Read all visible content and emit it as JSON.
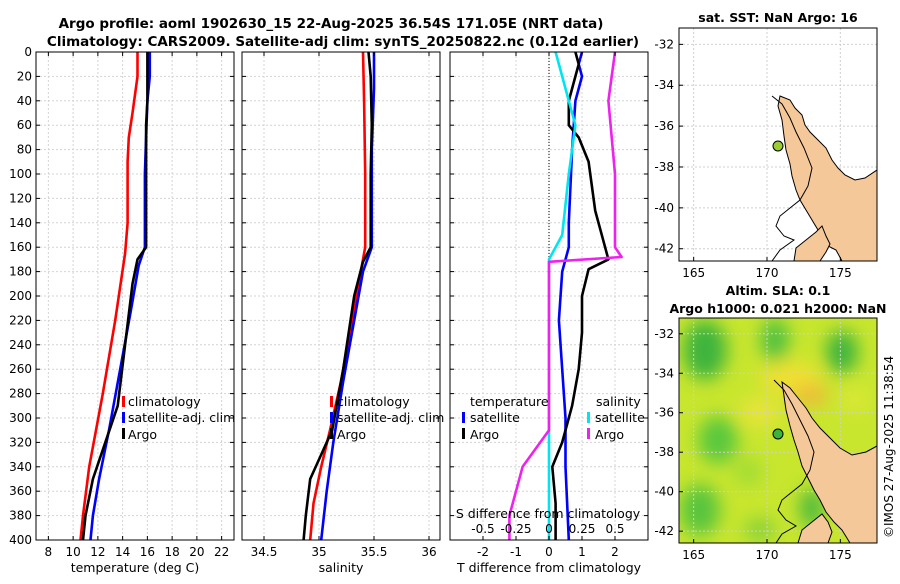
{
  "header": {
    "title_line1": "Argo profile: aoml 1902630_15 22-Aug-2025 36.54S 171.05E (NRT data)",
    "title_line2": "Climatology: CARS2009. Satellite-adj clim: synTS_20250822.nc (0.12d earlier)"
  },
  "colors": {
    "climatology": "#ff0000",
    "satellite": "#0000ff",
    "argo": "#000000",
    "s_satellite": "#00e5ee",
    "s_argo": "#ee22ee",
    "land": "#f5c89a",
    "ocean_nan": "#ffffff"
  },
  "chart_data": [
    {
      "type": "line",
      "id": "temperature",
      "xlabel": "temperature (deg C)",
      "xlim": [
        7,
        23
      ],
      "ylim": [
        0,
        400
      ],
      "xticks": [
        8,
        10,
        12,
        14,
        16,
        18,
        20,
        22
      ],
      "yticks": [
        0,
        20,
        40,
        60,
        80,
        100,
        120,
        140,
        160,
        180,
        200,
        220,
        240,
        260,
        280,
        300,
        320,
        340,
        360,
        380,
        400
      ],
      "legend": [
        "climatology",
        "satellite-adj. clim",
        "Argo"
      ],
      "series": [
        {
          "name": "climatology",
          "points": [
            [
              15.2,
              0
            ],
            [
              15.2,
              20
            ],
            [
              15.0,
              35
            ],
            [
              14.8,
              50
            ],
            [
              14.5,
              70
            ],
            [
              14.4,
              90
            ],
            [
              14.4,
              140
            ],
            [
              14.2,
              165
            ],
            [
              13.4,
              220
            ],
            [
              12.4,
              280
            ],
            [
              11.3,
              340
            ],
            [
              10.8,
              380
            ],
            [
              10.6,
              400
            ]
          ]
        },
        {
          "name": "satellite-adj. clim",
          "points": [
            [
              16.2,
              0
            ],
            [
              16.2,
              20
            ],
            [
              16.0,
              40
            ],
            [
              15.9,
              70
            ],
            [
              15.8,
              100
            ],
            [
              15.8,
              160
            ],
            [
              15.3,
              175
            ],
            [
              14.7,
              210
            ],
            [
              13.8,
              260
            ],
            [
              12.9,
              310
            ],
            [
              12.1,
              350
            ],
            [
              11.6,
              380
            ],
            [
              11.4,
              400
            ]
          ]
        },
        {
          "name": "Argo",
          "points": [
            [
              16.0,
              0
            ],
            [
              16.0,
              20
            ],
            [
              16.0,
              40
            ],
            [
              15.9,
              60
            ],
            [
              15.9,
              100
            ],
            [
              15.9,
              160
            ],
            [
              15.2,
              170
            ],
            [
              14.8,
              190
            ],
            [
              14.2,
              240
            ],
            [
              13.6,
              290
            ],
            [
              12.6,
              320
            ],
            [
              11.6,
              350
            ],
            [
              11.0,
              380
            ],
            [
              10.8,
              400
            ]
          ]
        }
      ]
    },
    {
      "type": "line",
      "id": "salinity",
      "xlabel": "salinity",
      "xlim": [
        34.3,
        36.1
      ],
      "ylim": [
        0,
        400
      ],
      "xticks": [
        34.5,
        35,
        35.5,
        36
      ],
      "yticks": [
        0,
        20,
        40,
        60,
        80,
        100,
        120,
        140,
        160,
        180,
        200,
        220,
        240,
        260,
        280,
        300,
        320,
        340,
        360,
        380,
        400
      ],
      "legend": [
        "climatology",
        "satellite-adj. clim",
        "Argo"
      ],
      "series": [
        {
          "name": "climatology",
          "points": [
            [
              35.4,
              0
            ],
            [
              35.41,
              40
            ],
            [
              35.42,
              100
            ],
            [
              35.42,
              160
            ],
            [
              35.38,
              180
            ],
            [
              35.3,
              220
            ],
            [
              35.2,
              270
            ],
            [
              35.1,
              310
            ],
            [
              35.02,
              340
            ],
            [
              34.95,
              370
            ],
            [
              34.92,
              400
            ]
          ]
        },
        {
          "name": "satellite-adj. clim",
          "points": [
            [
              35.5,
              0
            ],
            [
              35.5,
              30
            ],
            [
              35.48,
              80
            ],
            [
              35.48,
              160
            ],
            [
              35.4,
              180
            ],
            [
              35.32,
              220
            ],
            [
              35.22,
              270
            ],
            [
              35.13,
              320
            ],
            [
              35.07,
              360
            ],
            [
              35.02,
              400
            ]
          ]
        },
        {
          "name": "Argo",
          "points": [
            [
              35.45,
              0
            ],
            [
              35.47,
              20
            ],
            [
              35.48,
              60
            ],
            [
              35.47,
              100
            ],
            [
              35.47,
              160
            ],
            [
              35.4,
              172
            ],
            [
              35.32,
              200
            ],
            [
              35.22,
              260
            ],
            [
              35.12,
              310
            ],
            [
              35.02,
              330
            ],
            [
              34.92,
              350
            ],
            [
              34.88,
              380
            ],
            [
              34.86,
              400
            ]
          ]
        }
      ]
    },
    {
      "type": "line",
      "id": "difference",
      "xlabel": "T difference from climatology",
      "xlabel_top": "S difference from climatology",
      "xlim": [
        -3,
        3
      ],
      "ylim": [
        0,
        400
      ],
      "xticks": [
        -2,
        -1,
        0,
        1,
        2
      ],
      "top_ticks": [
        "-0.5",
        "-0.25",
        "0",
        "0.25",
        "0.5"
      ],
      "yticks": [
        0,
        20,
        40,
        60,
        80,
        100,
        120,
        140,
        160,
        180,
        200,
        220,
        240,
        260,
        280,
        300,
        320,
        340,
        360,
        380,
        400
      ],
      "legend_temperature_title": "temperature",
      "legend_salinity_title": "salinity",
      "legend_temperature": [
        "satellite",
        "Argo"
      ],
      "legend_salinity": [
        "satellite",
        "Argo"
      ],
      "series": [
        {
          "name": "T satellite",
          "points": [
            [
              1.0,
              0
            ],
            [
              0.9,
              10
            ],
            [
              1.0,
              20
            ],
            [
              0.8,
              40
            ],
            [
              0.7,
              80
            ],
            [
              0.6,
              140
            ],
            [
              0.6,
              160
            ],
            [
              0.4,
              180
            ],
            [
              0.3,
              220
            ],
            [
              0.4,
              260
            ],
            [
              0.5,
              300
            ],
            [
              0.5,
              340
            ],
            [
              0.6,
              400
            ]
          ]
        },
        {
          "name": "T Argo",
          "points": [
            [
              0.8,
              0
            ],
            [
              0.9,
              10
            ],
            [
              0.8,
              20
            ],
            [
              0.6,
              40
            ],
            [
              0.6,
              60
            ],
            [
              0.9,
              70
            ],
            [
              1.2,
              90
            ],
            [
              1.4,
              130
            ],
            [
              1.7,
              160
            ],
            [
              1.8,
              170
            ],
            [
              1.2,
              178
            ],
            [
              1.0,
              200
            ],
            [
              1.0,
              230
            ],
            [
              0.9,
              260
            ],
            [
              0.7,
              290
            ],
            [
              0.4,
              320
            ],
            [
              0.1,
              340
            ],
            [
              0.2,
              370
            ],
            [
              0.2,
              400
            ]
          ]
        },
        {
          "name": "S satellite",
          "points": [
            [
              0.05,
              0
            ],
            [
              0.1,
              20
            ],
            [
              0.2,
              60
            ],
            [
              0.15,
              100
            ],
            [
              0.1,
              150
            ],
            [
              0.0,
              170
            ],
            [
              0.0,
              250
            ],
            [
              0.0,
              300
            ],
            [
              0.0,
              350
            ],
            [
              0.0,
              400
            ]
          ]
        },
        {
          "name": "S Argo",
          "points": [
            [
              0.5,
              0
            ],
            [
              0.45,
              40
            ],
            [
              0.5,
              100
            ],
            [
              0.5,
              160
            ],
            [
              0.55,
              168
            ],
            [
              0.0,
              172
            ],
            [
              0.0,
              260
            ],
            [
              0.0,
              310
            ],
            [
              -0.2,
              340
            ],
            [
              -0.3,
              380
            ],
            [
              -0.3,
              400
            ]
          ]
        }
      ]
    },
    {
      "type": "heatmap",
      "id": "sst_map",
      "title": "sat. SST: NaN Argo: 16",
      "xlim": [
        164,
        177.5
      ],
      "ylim": [
        -42.6,
        -31.2
      ],
      "xticks": [
        165,
        170,
        175
      ],
      "yticks": [
        -32,
        -34,
        -36,
        -38,
        -40,
        -42
      ],
      "argo_position": [
        171.05,
        -36.54
      ]
    },
    {
      "type": "heatmap",
      "id": "sla_map",
      "title": "Altim. SLA: 0.1",
      "title2": "Argo h1000: 0.021 h2000: NaN",
      "xlim": [
        164,
        177.5
      ],
      "ylim": [
        -42.6,
        -31.2
      ],
      "xticks": [
        165,
        170,
        175
      ],
      "yticks": [
        -32,
        -34,
        -36,
        -38,
        -40,
        -42
      ],
      "argo_position": [
        171.05,
        -36.54
      ]
    }
  ],
  "footer": {
    "credit": "©IMOS 27-Aug-2025 11:38:54"
  }
}
